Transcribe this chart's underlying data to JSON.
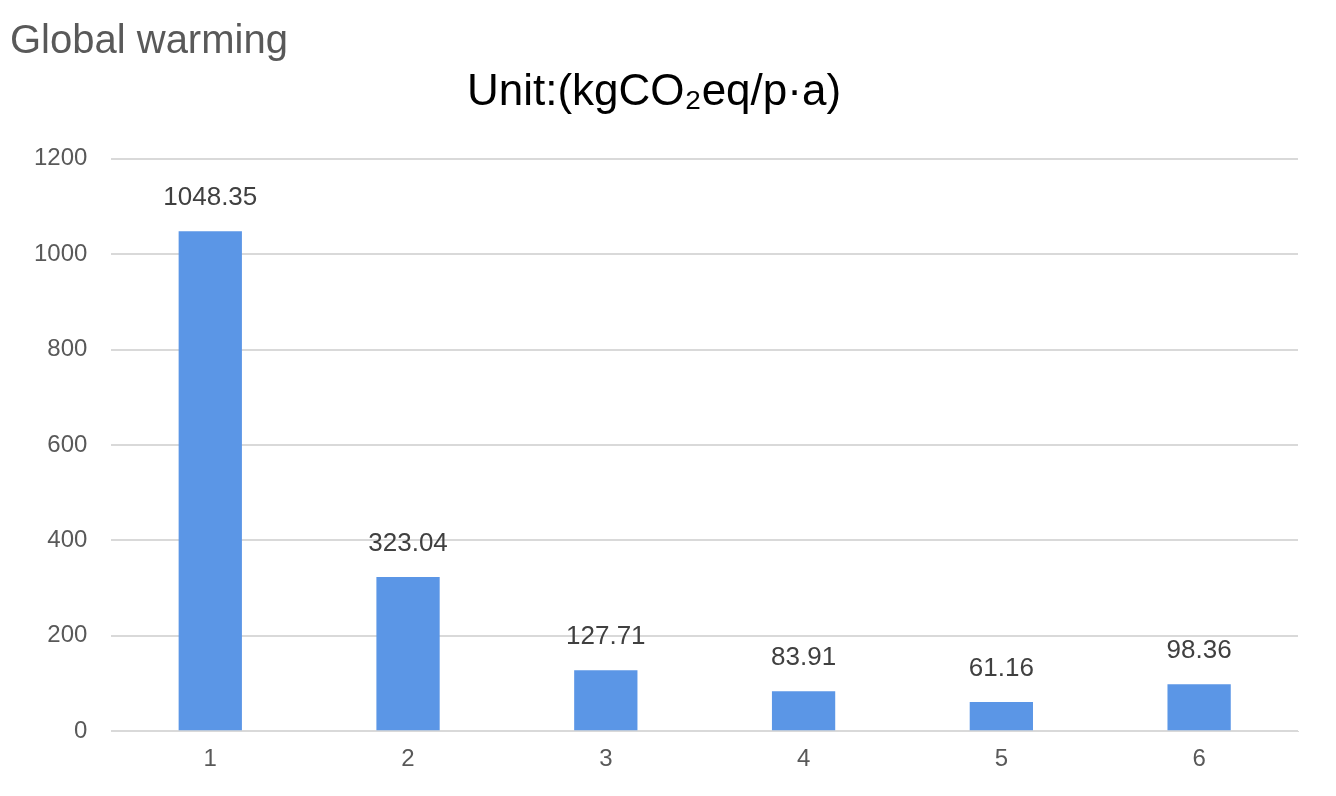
{
  "chart_data": {
    "type": "bar",
    "title": "Global warming",
    "subtitle": "Unit:(kgCO₂eq/p·a)",
    "categories": [
      "1",
      "2",
      "3",
      "4",
      "5",
      "6"
    ],
    "values": [
      1048.35,
      323.04,
      127.71,
      83.91,
      61.16,
      98.36
    ],
    "color": "#5b96e6",
    "ylim": [
      0,
      1200
    ],
    "yticks": [
      0,
      200,
      400,
      600,
      800,
      1000,
      1200
    ],
    "grid": "y",
    "legend": false,
    "data_labels": true
  }
}
